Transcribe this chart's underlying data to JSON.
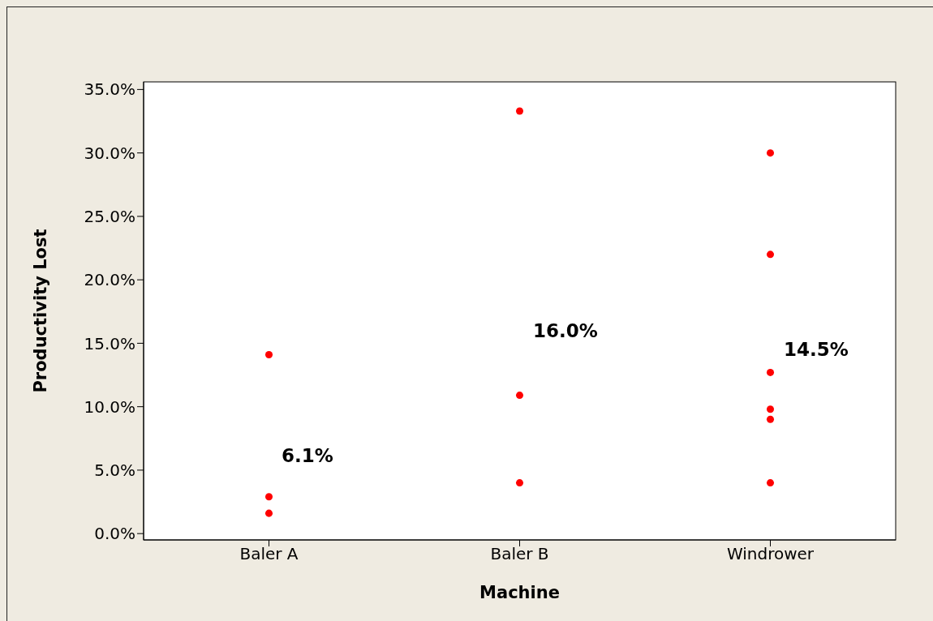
{
  "chart_data": {
    "type": "scatter",
    "xlabel": "Machine",
    "ylabel": "Productivity Lost",
    "categories": [
      "Baler A",
      "Baler B",
      "Windrower"
    ],
    "series": [
      {
        "color": "#ff0000",
        "x": [
          "Baler A",
          "Baler A",
          "Baler A",
          "Baler B",
          "Baler B",
          "Baler B",
          "Windrower",
          "Windrower",
          "Windrower",
          "Windrower",
          "Windrower",
          "Windrower"
        ],
        "values": [
          14.1,
          2.9,
          1.6,
          33.3,
          10.9,
          4.0,
          30.0,
          22.0,
          12.7,
          9.8,
          9.0,
          4.0
        ]
      }
    ],
    "annotations": [
      "6.1%",
      "16.0%",
      "14.5%"
    ],
    "ylim": [
      -0.5,
      35.6
    ],
    "yticks": [
      {
        "value": 0,
        "label": "0.0%"
      },
      {
        "value": 5,
        "label": "5.0%"
      },
      {
        "value": 10,
        "label": "10.0%"
      },
      {
        "value": 15,
        "label": "15.0%"
      },
      {
        "value": 20,
        "label": "20.0%"
      },
      {
        "value": 25,
        "label": "25.0%"
      },
      {
        "value": 30,
        "label": "30.0%"
      },
      {
        "value": 35,
        "label": "35.0%"
      }
    ],
    "grid": false,
    "legend": false,
    "marker": "circle"
  }
}
